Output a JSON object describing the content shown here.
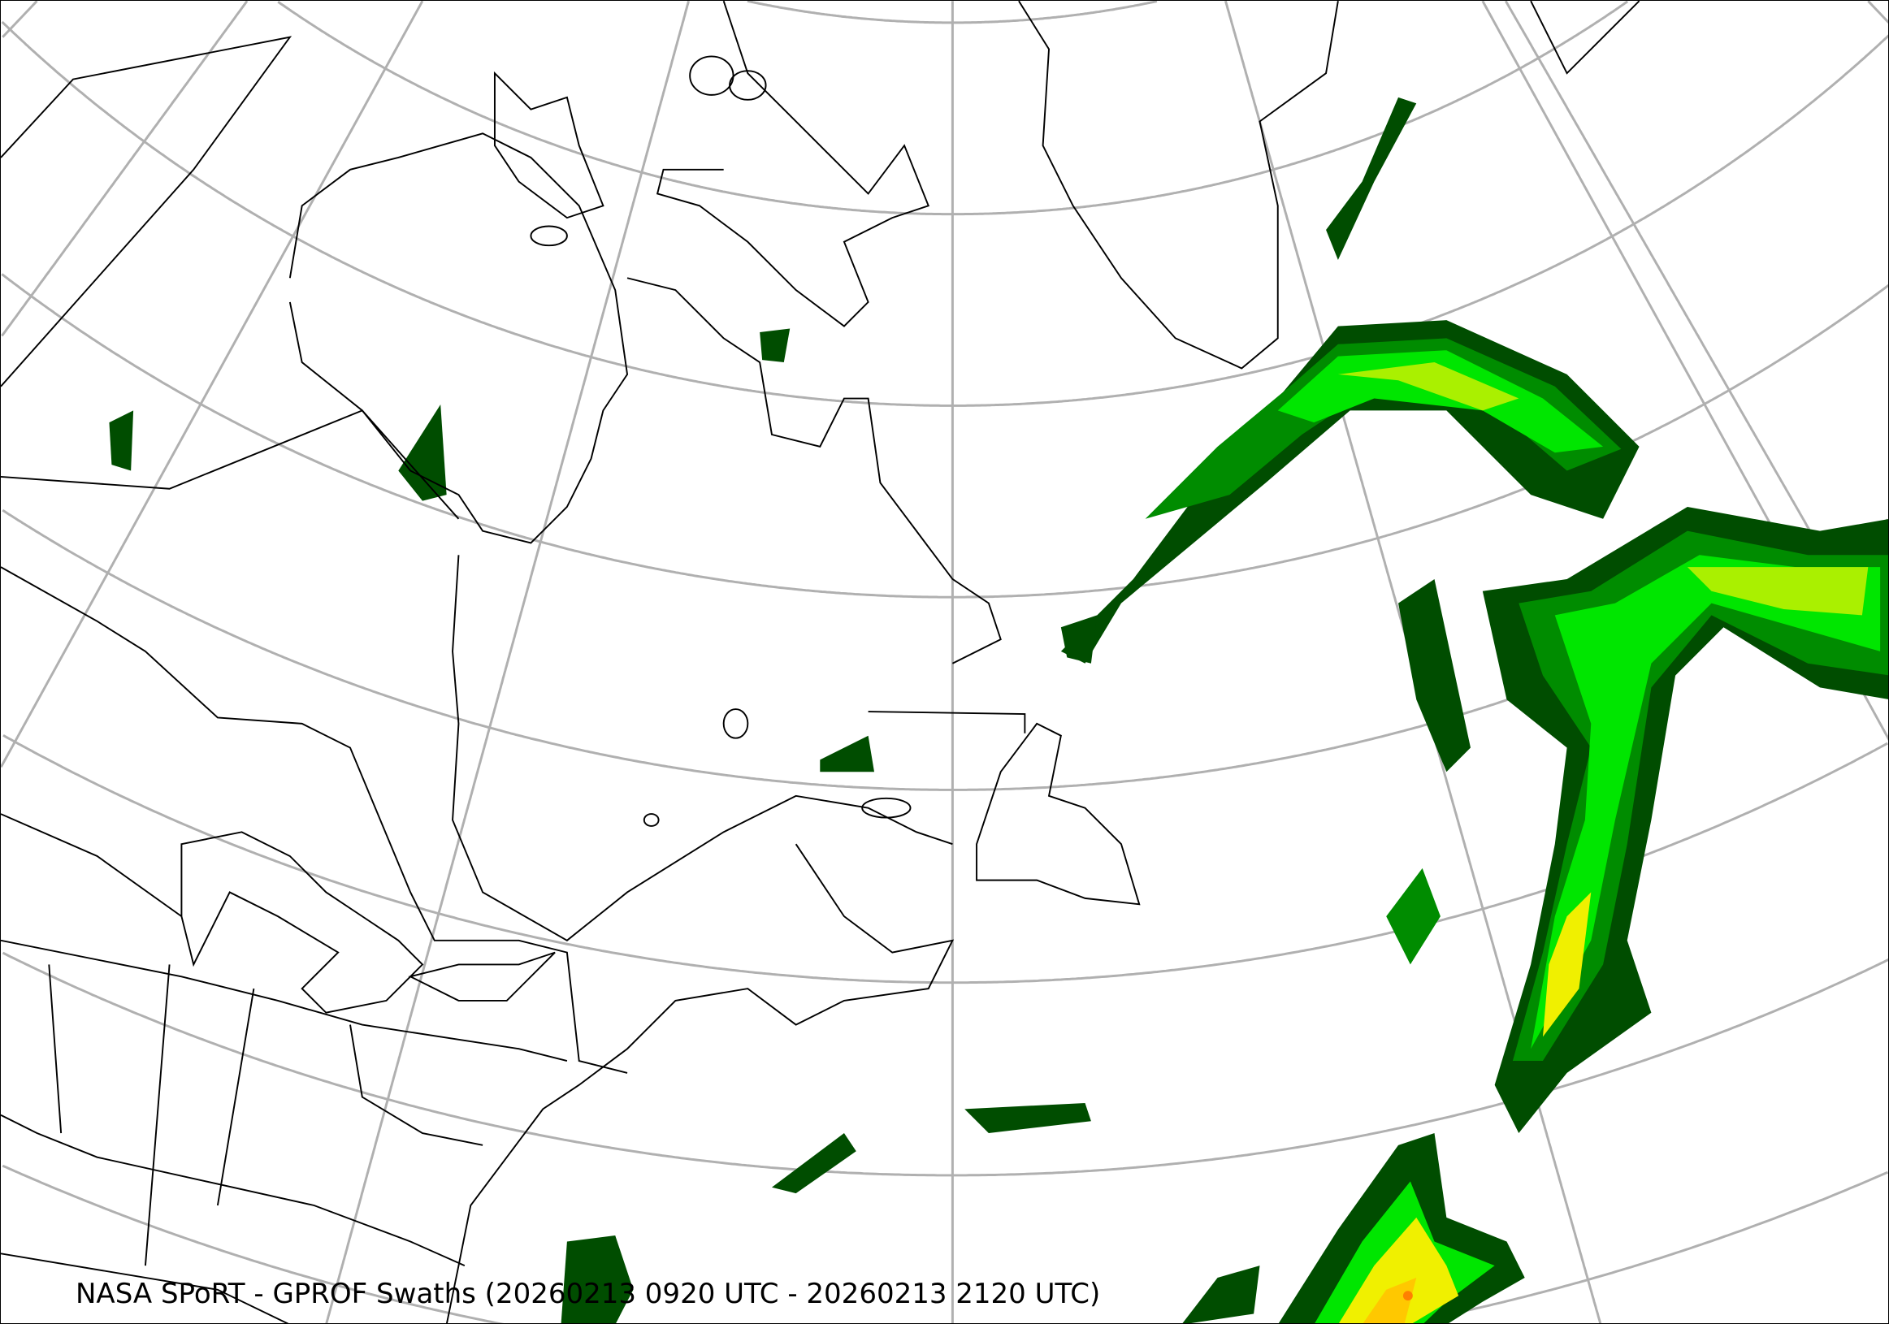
{
  "map": {
    "title": "NASA SPoRT - GPROF Swaths (20260213 0920 UTC - 20260213 2120 UTC)",
    "projection": "lambert-conformal",
    "region": "north-atlantic-northeast-north-america",
    "colors": {
      "graticule": "#b0b0b0",
      "coastline": "#000000",
      "precip_light": "#004d00",
      "precip_moderate": "#008c00",
      "precip_heavy": "#00e600",
      "precip_very_heavy": "#aaf000",
      "precip_intense": "#f0f000",
      "precip_extreme": "#ffc800",
      "precip_max": "#ff8000"
    }
  }
}
